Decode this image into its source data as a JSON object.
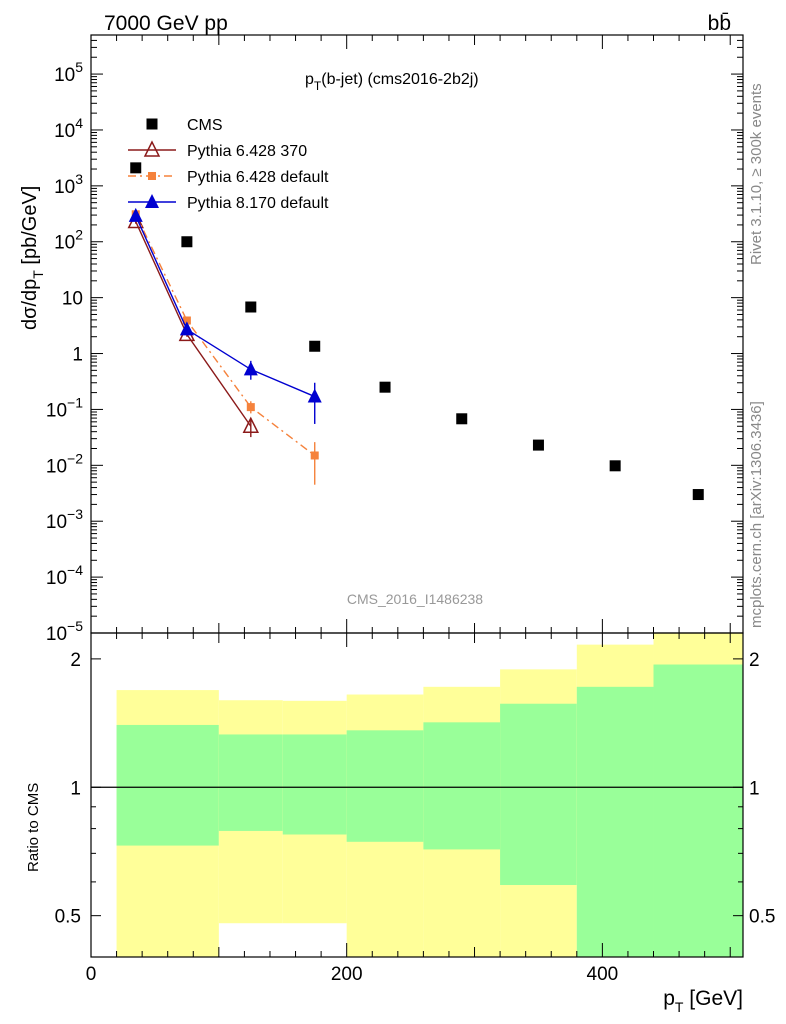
{
  "header": {
    "energy": "7000 GeV pp",
    "process": "bb̄",
    "subtitle_main": "p",
    "subtitle_sub": "T",
    "subtitle_rest": "(b-jet) (cms2016-2b2j)",
    "rivet": "Rivet 3.1.10, ≥ 300k events",
    "mcplots": "mcplots.cern.ch [arXiv:1306.3436]",
    "analysis_id": "CMS_2016_I1486238"
  },
  "axes": {
    "ylabel_top": "dσ/dp_T [pb/GeV]",
    "ylabel_top_parts": [
      "dσ/dp",
      "T",
      " [pb/GeV]"
    ],
    "ylabel_bottom": "Ratio to CMS",
    "xlabel_parts": [
      "p",
      "T",
      " [GeV]"
    ]
  },
  "colors": {
    "cms": "#000000",
    "py6_370": "#8b1a1a",
    "py6_default": "#f5823c",
    "py8_default": "#0000d0",
    "band_inner": "#99ff99",
    "band_outer": "#ffff99"
  },
  "chart_data": [
    {
      "type": "scatter",
      "title": "p_T(b-jet) (cms2016-2b2j)",
      "xlabel": "p_T [GeV]",
      "ylabel": "dσ/dp_T [pb/GeV]",
      "xlim": [
        0,
        510
      ],
      "ylim": [
        1e-05,
        500000
      ],
      "yscale": "log",
      "y_ticks": [
        {
          "v": 1e-05,
          "b": "10",
          "e": "−5"
        },
        {
          "v": 0.0001,
          "b": "10",
          "e": "−4"
        },
        {
          "v": 0.001,
          "b": "10",
          "e": "−3"
        },
        {
          "v": 0.01,
          "b": "10",
          "e": "−2"
        },
        {
          "v": 0.1,
          "b": "10",
          "e": "−1"
        },
        {
          "v": 1,
          "b": "1",
          "e": ""
        },
        {
          "v": 10,
          "b": "10",
          "e": ""
        },
        {
          "v": 100,
          "b": "10",
          "e": "2"
        },
        {
          "v": 1000,
          "b": "10",
          "e": "3"
        },
        {
          "v": 10000,
          "b": "10",
          "e": "4"
        },
        {
          "v": 100000,
          "b": "10",
          "e": "5"
        }
      ],
      "x_ticks": [
        0,
        200,
        400
      ],
      "legend_position": "top-left",
      "series": [
        {
          "name": "CMS",
          "key": "cms",
          "style": "marker-square",
          "x": [
            35,
            75,
            125,
            175,
            230,
            290,
            350,
            410,
            475
          ],
          "y": [
            2100,
            100,
            6.8,
            1.35,
            0.25,
            0.068,
            0.023,
            0.0098,
            0.003
          ]
        },
        {
          "name": "Pythia 6.428 370",
          "key": "py6_370",
          "style": "open-triangle-solid",
          "x": [
            35,
            75,
            125
          ],
          "y": [
            230,
            2.2,
            0.05
          ],
          "yerr_lo": [
            210,
            2.0,
            0.032
          ],
          "yerr_hi": [
            250,
            2.4,
            0.07
          ]
        },
        {
          "name": "Pythia 6.428 default",
          "key": "py6_default",
          "style": "square-dashdot",
          "x": [
            35,
            75,
            125,
            175
          ],
          "y": [
            310,
            3.9,
            0.11,
            0.015
          ],
          "yerr_lo": [
            290,
            3.6,
            0.085,
            0.0045
          ],
          "yerr_hi": [
            330,
            4.2,
            0.14,
            0.026
          ]
        },
        {
          "name": "Pythia 8.170 default",
          "key": "py8_default",
          "style": "filled-triangle-solid",
          "x": [
            35,
            75,
            125,
            175
          ],
          "y": [
            290,
            2.7,
            0.52,
            0.17
          ],
          "yerr_lo": [
            270,
            2.4,
            0.34,
            0.055
          ],
          "yerr_hi": [
            310,
            3.0,
            0.74,
            0.3
          ]
        }
      ]
    },
    {
      "type": "area",
      "ylabel": "Ratio to CMS",
      "xlim": [
        0,
        510
      ],
      "ylim": [
        0.4,
        2.3
      ],
      "y_ticks": [
        0.5,
        1,
        2
      ],
      "bins": [
        {
          "lo": 20,
          "hi": 100,
          "outer": [
            0.335,
            1.69
          ],
          "inner": [
            0.73,
            1.4
          ]
        },
        {
          "lo": 100,
          "hi": 150,
          "outer": [
            0.48,
            1.6
          ],
          "inner": [
            0.79,
            1.33
          ]
        },
        {
          "lo": 150,
          "hi": 200,
          "outer": [
            0.48,
            1.595
          ],
          "inner": [
            0.775,
            1.33
          ]
        },
        {
          "lo": 200,
          "hi": 260,
          "outer": [
            0.365,
            1.65
          ],
          "inner": [
            0.745,
            1.36
          ]
        },
        {
          "lo": 260,
          "hi": 320,
          "outer": [
            0.375,
            1.72
          ],
          "inner": [
            0.715,
            1.42
          ]
        },
        {
          "lo": 320,
          "hi": 380,
          "outer": [
            0.38,
            1.89
          ],
          "inner": [
            0.59,
            1.57
          ]
        },
        {
          "lo": 380,
          "hi": 440,
          "outer": [
            0.335,
            2.16
          ],
          "inner": [
            0.335,
            1.72
          ]
        },
        {
          "lo": 440,
          "hi": 510,
          "outer": [
            0.335,
            2.35
          ],
          "inner": [
            0.335,
            1.94
          ]
        }
      ]
    }
  ]
}
